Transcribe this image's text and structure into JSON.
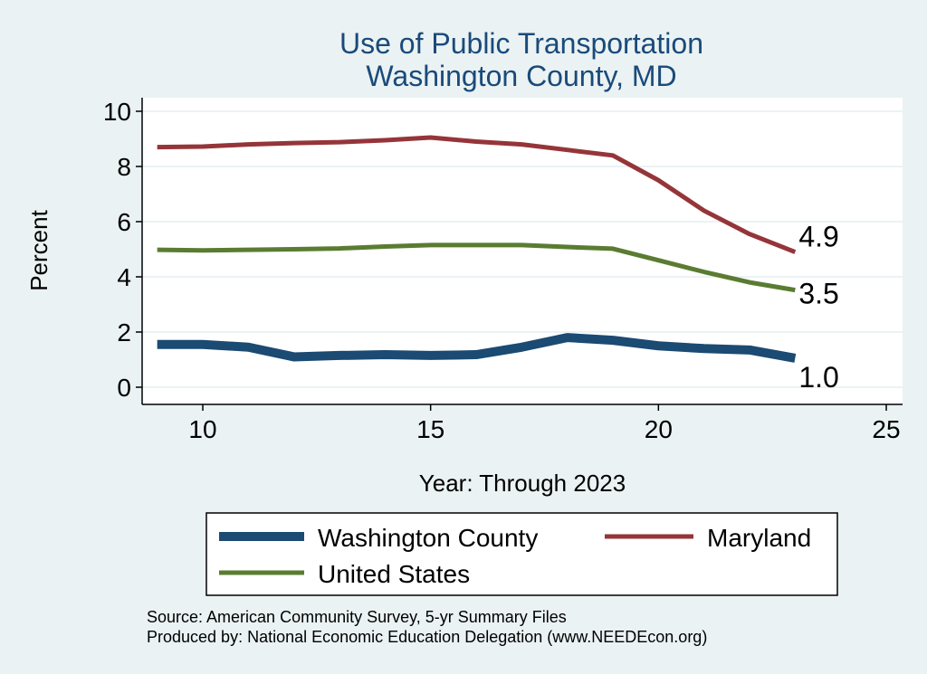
{
  "chart_data": {
    "type": "line",
    "title": "Use of Public Transportation",
    "subtitle": "Washington County, MD",
    "xlabel": "Year: Through 2023",
    "ylabel": "Percent",
    "xlim": [
      9,
      25
    ],
    "ylim": [
      0,
      10
    ],
    "xticks": [
      10,
      15,
      20,
      25
    ],
    "yticks": [
      0,
      2,
      4,
      6,
      8,
      10
    ],
    "grid": true,
    "series": [
      {
        "name": "Washington County",
        "color": "#1b4a72",
        "x": [
          9,
          10,
          11,
          12,
          13,
          14,
          15,
          16,
          17,
          18,
          19,
          20,
          21,
          22,
          23
        ],
        "values": [
          1.55,
          1.55,
          1.45,
          1.1,
          1.15,
          1.18,
          1.15,
          1.18,
          1.45,
          1.8,
          1.7,
          1.5,
          1.4,
          1.35,
          1.05
        ],
        "end_label": "1.0"
      },
      {
        "name": "Maryland",
        "color": "#953539",
        "x": [
          9,
          10,
          11,
          12,
          13,
          14,
          15,
          16,
          17,
          18,
          19,
          20,
          21,
          22,
          23
        ],
        "values": [
          8.7,
          8.72,
          8.8,
          8.85,
          8.88,
          8.95,
          9.05,
          8.9,
          8.8,
          8.6,
          8.4,
          7.5,
          6.4,
          5.55,
          4.9
        ],
        "end_label": "4.9"
      },
      {
        "name": "United States",
        "color": "#5a7c32",
        "x": [
          9,
          10,
          11,
          12,
          13,
          14,
          15,
          16,
          17,
          18,
          19,
          20,
          21,
          22,
          23
        ],
        "values": [
          4.98,
          4.96,
          4.98,
          5.0,
          5.03,
          5.1,
          5.15,
          5.15,
          5.15,
          5.08,
          5.02,
          4.6,
          4.18,
          3.8,
          3.52
        ],
        "end_label": "3.5"
      }
    ],
    "legend": {
      "position": "bottom",
      "items": [
        "Washington County",
        "Maryland",
        "United States"
      ]
    },
    "source_lines": [
      "Source: American Community Survey, 5-yr Summary Files",
      "Produced by: National Economic Education Delegation (www.NEEDEcon.org)"
    ]
  }
}
